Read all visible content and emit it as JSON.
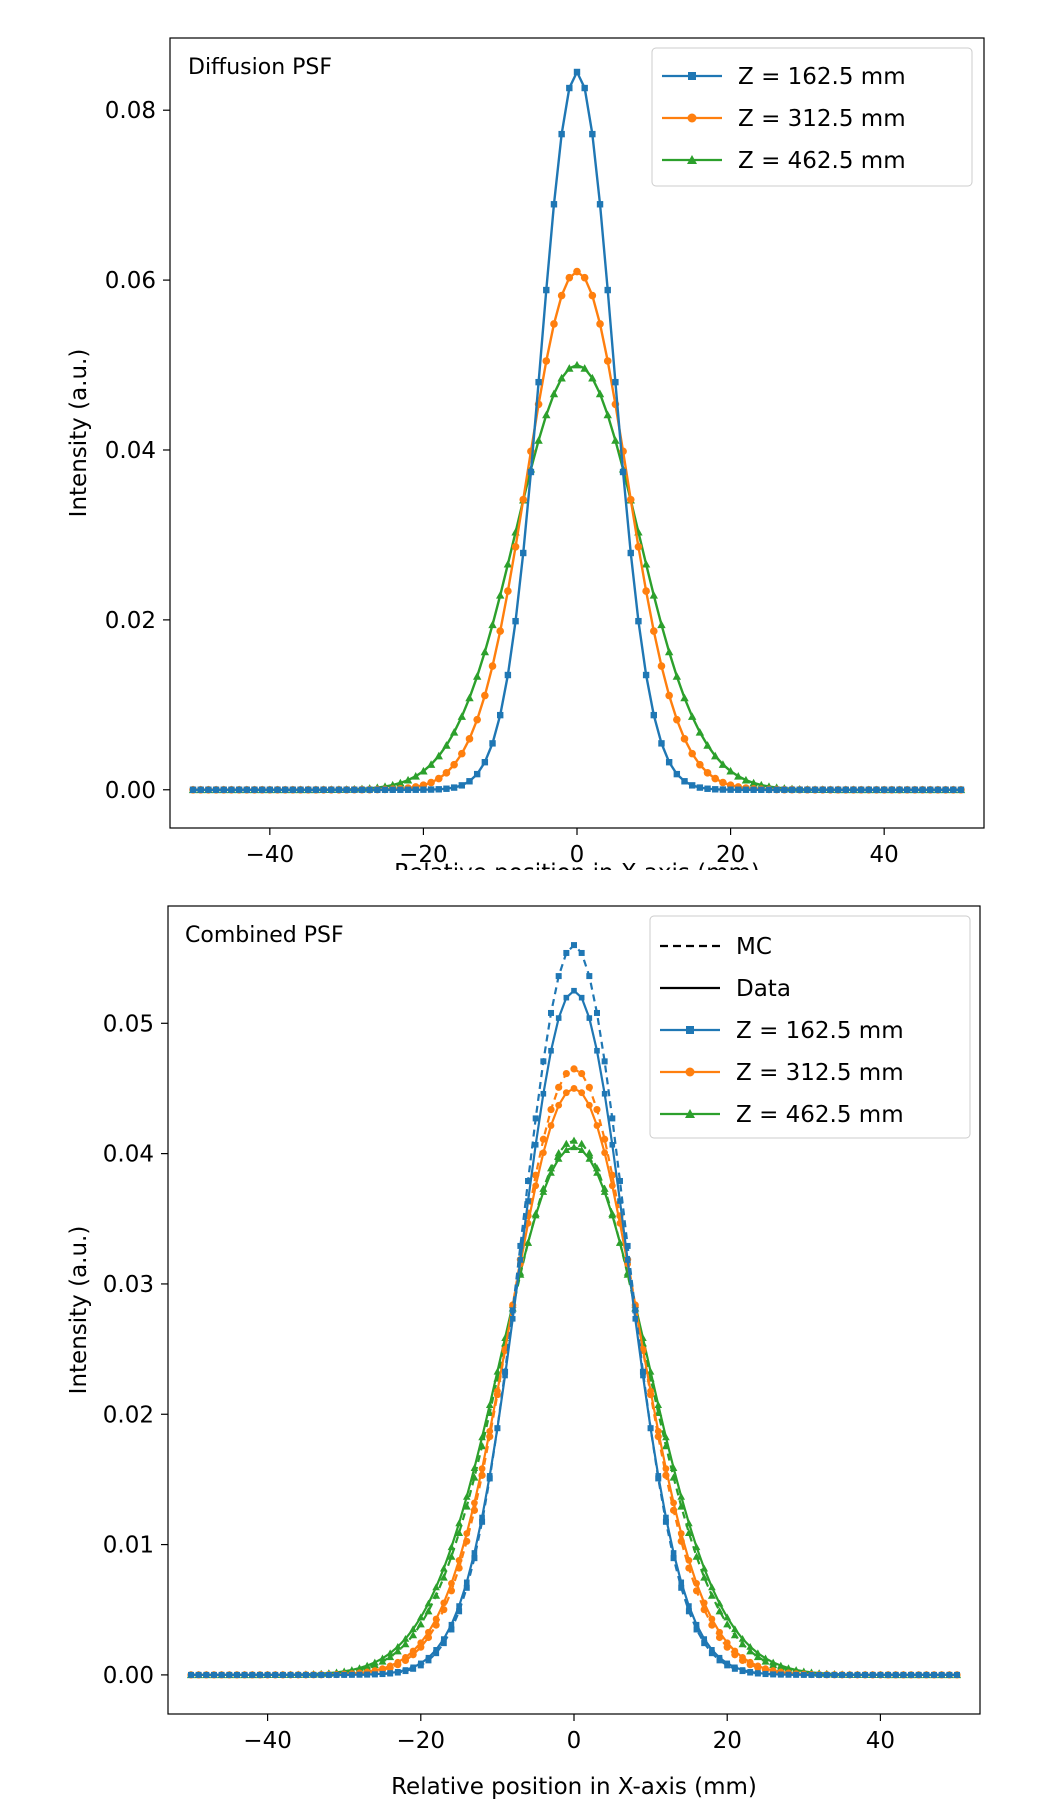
{
  "colors": {
    "blue": "#1f77b4",
    "orange": "#ff7f0e",
    "green": "#2ca02c",
    "black": "#000000"
  },
  "chart_data": [
    {
      "type": "line",
      "title": "Diffusion PSF",
      "xlabel": "Relative position in X-axis (mm)",
      "ylabel": "Intensity (a.u.)",
      "xlim": [
        -53,
        53
      ],
      "ylim": [
        -0.0045,
        0.0885
      ],
      "xticks": [
        "−40",
        "−20",
        "0",
        "20",
        "40"
      ],
      "xtick_values": [
        -40,
        -20,
        0,
        20,
        40
      ],
      "yticks": [
        "0.00",
        "0.02",
        "0.04",
        "0.06",
        "0.08"
      ],
      "ytick_values": [
        0,
        0.02,
        0.04,
        0.06,
        0.08
      ],
      "grid": false,
      "legend_position": "top-right",
      "x_range": [
        -50,
        50
      ],
      "x_step": 1,
      "series": [
        {
          "name": "Z = 162.5 mm",
          "color": "#1f77b4",
          "marker": "square",
          "peak": 0.0845,
          "sigma_mm": 4.7
        },
        {
          "name": "Z = 312.5 mm",
          "color": "#ff7f0e",
          "marker": "circle",
          "peak": 0.061,
          "sigma_mm": 6.5
        },
        {
          "name": "Z = 462.5 mm",
          "color": "#2ca02c",
          "marker": "triangle",
          "peak": 0.05,
          "sigma_mm": 8.0
        }
      ]
    },
    {
      "type": "line",
      "title": "Combined PSF",
      "xlabel": "Relative position in X-axis (mm)",
      "ylabel": "Intensity (a.u.)",
      "xlim": [
        -53,
        53
      ],
      "ylim": [
        -0.003,
        0.059
      ],
      "xticks": [
        "−40",
        "−20",
        "0",
        "20",
        "40"
      ],
      "xtick_values": [
        -40,
        -20,
        0,
        20,
        40
      ],
      "yticks": [
        "0.00",
        "0.01",
        "0.02",
        "0.03",
        "0.04",
        "0.05"
      ],
      "ytick_values": [
        0,
        0.01,
        0.02,
        0.03,
        0.04,
        0.05
      ],
      "grid": false,
      "legend_position": "top-right",
      "legend_styles": [
        {
          "label": "MC",
          "style": "dashed"
        },
        {
          "label": "Data",
          "style": "solid"
        }
      ],
      "x_range": [
        -50,
        50
      ],
      "x_step": 1,
      "series": [
        {
          "name": "Z = 162.5 mm",
          "color": "#1f77b4",
          "marker": "square",
          "mc_peak": 0.056,
          "data_peak": 0.0525,
          "sigma_mm": 7.0
        },
        {
          "name": "Z = 312.5 mm",
          "color": "#ff7f0e",
          "marker": "circle",
          "mc_peak": 0.0465,
          "data_peak": 0.045,
          "sigma_mm": 8.3
        },
        {
          "name": "Z = 462.5 mm",
          "color": "#2ca02c",
          "marker": "triangle",
          "mc_peak": 0.041,
          "data_peak": 0.0405,
          "sigma_mm": 9.5
        }
      ]
    }
  ]
}
